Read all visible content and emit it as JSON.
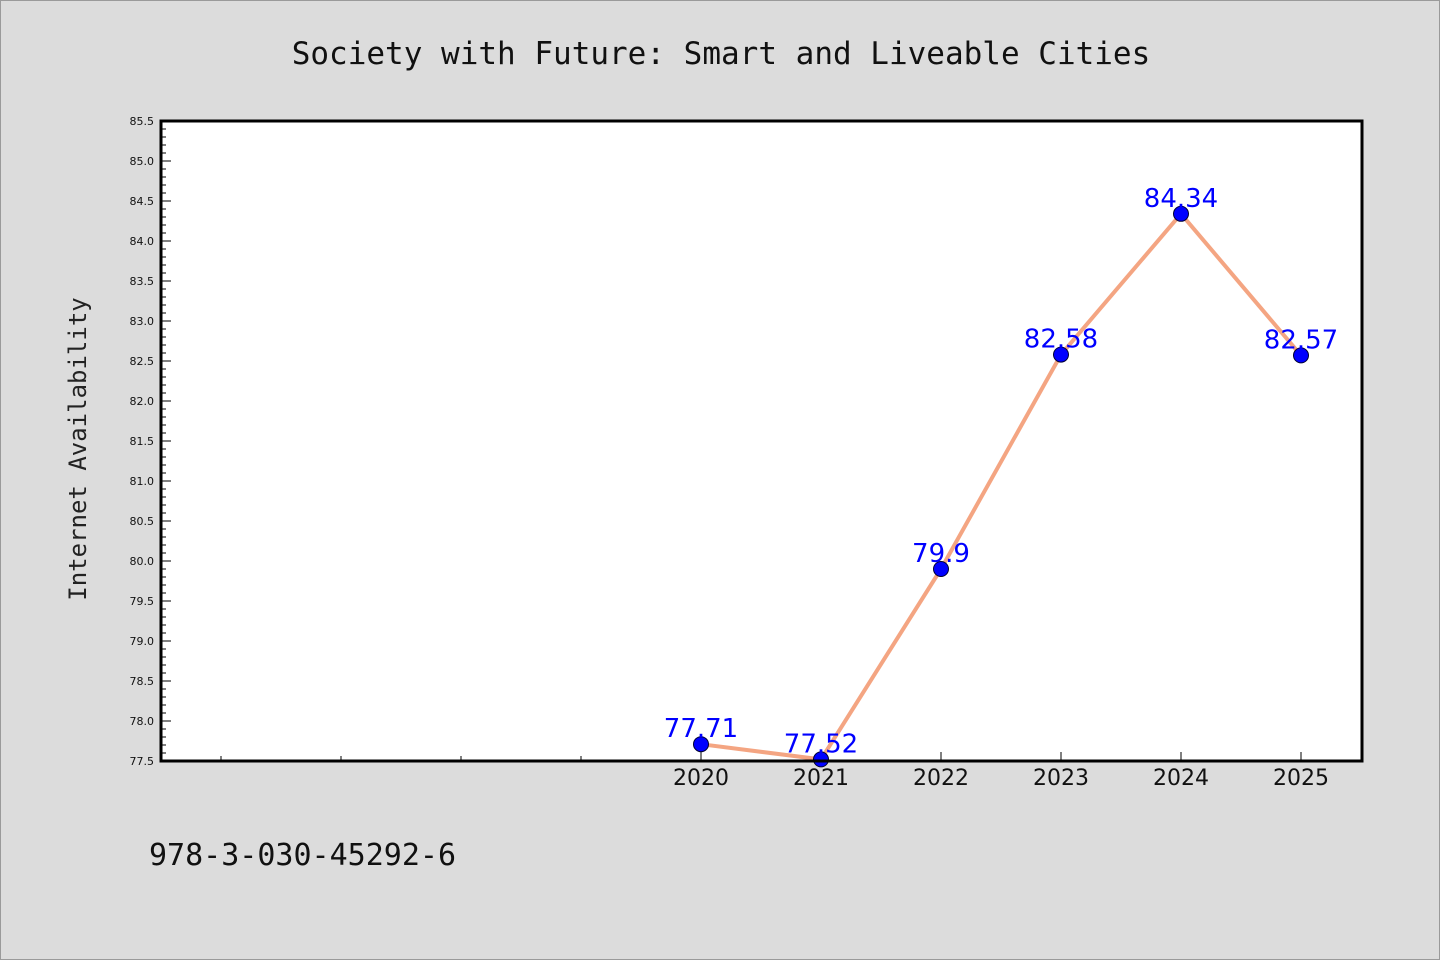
{
  "chart_data": {
    "type": "line",
    "title": "Society with Future: Smart and Liveable Cities",
    "xlabel": "",
    "ylabel": "Internet Availability",
    "x": [
      "2020",
      "2021",
      "2022",
      "2023",
      "2024",
      "2025"
    ],
    "values": [
      77.71,
      77.52,
      79.9,
      82.58,
      84.34,
      82.57
    ],
    "data_labels": [
      "77.71",
      "77.52",
      "79.9",
      "82.58",
      "84.34",
      "82.57"
    ],
    "ylim": [
      77.5,
      85.5
    ],
    "yticks": [
      "77.5",
      "78.0",
      "78.5",
      "79.0",
      "79.5",
      "80.0",
      "80.5",
      "81.0",
      "81.5",
      "82.0",
      "82.5",
      "83.0",
      "83.5",
      "84.0",
      "84.5",
      "85.0",
      "85.5"
    ],
    "grid": false,
    "legend": "none",
    "colors": {
      "line": "#f4a582",
      "marker": "#0000ff",
      "data_label": "#0000ff",
      "figure_background": "#dcdcdc",
      "plot_background": "#ffffff"
    }
  },
  "footer": {
    "isbn": "978-3-030-45292-6"
  }
}
